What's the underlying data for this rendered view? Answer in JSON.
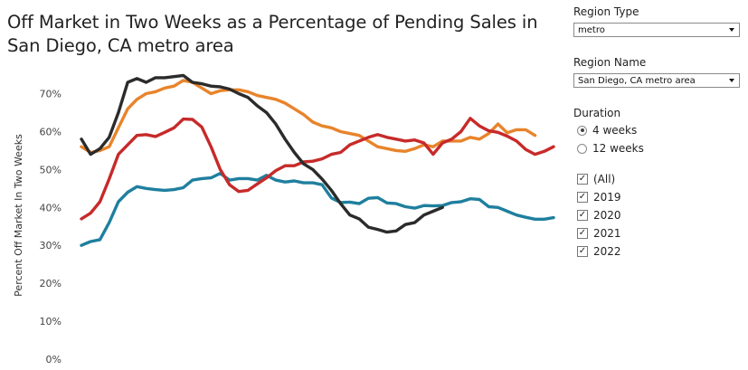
{
  "title": "Off Market in Two Weeks as a Percentage of Pending Sales in San Diego, CA metro area",
  "controls": {
    "region_type_label": "Region Type",
    "region_type_value": "metro",
    "region_name_label": "Region Name",
    "region_name_value": "San Diego, CA metro area",
    "duration_label": "Duration",
    "duration_options": [
      {
        "label": "4 weeks",
        "selected": true
      },
      {
        "label": "12 weeks",
        "selected": false
      }
    ],
    "year_filters": [
      {
        "label": "(All)",
        "checked": true
      },
      {
        "label": "2019",
        "checked": true
      },
      {
        "label": "2020",
        "checked": true
      },
      {
        "label": "2021",
        "checked": true
      },
      {
        "label": "2022",
        "checked": true
      }
    ],
    "check_glyph": "✓"
  },
  "chart_data": {
    "type": "line",
    "ylabel": "Percent Off Market In Two Weeks",
    "xlabel": "",
    "ylim": [
      0,
      0.78
    ],
    "yticks": [
      {
        "value": 0.0,
        "label": "0%"
      },
      {
        "value": 0.1,
        "label": "10%"
      },
      {
        "value": 0.2,
        "label": "20%"
      },
      {
        "value": 0.3,
        "label": "30%"
      },
      {
        "value": 0.4,
        "label": "40%"
      },
      {
        "value": 0.5,
        "label": "50%"
      },
      {
        "value": 0.6,
        "label": "60%"
      },
      {
        "value": 0.7,
        "label": "70%"
      }
    ],
    "x_range": [
      1,
      52
    ],
    "legend": "none",
    "grid": false,
    "series": [
      {
        "color": "#1f7f9e",
        "x": [
          1,
          2,
          3,
          4,
          5,
          6,
          7,
          8,
          9,
          10,
          11,
          12,
          13,
          14,
          15,
          16,
          17,
          18,
          19,
          20,
          21,
          22,
          23,
          24,
          25,
          26,
          27,
          28,
          29,
          30,
          31,
          32,
          33,
          34,
          35,
          36,
          37,
          38,
          39,
          40,
          41,
          42,
          43,
          44,
          45,
          46,
          47,
          48,
          49,
          50,
          51,
          52
        ],
        "y": [
          0.3,
          0.31,
          0.315,
          0.36,
          0.415,
          0.44,
          0.455,
          0.45,
          0.447,
          0.445,
          0.447,
          0.452,
          0.472,
          0.476,
          0.478,
          0.49,
          0.472,
          0.476,
          0.476,
          0.472,
          0.485,
          0.472,
          0.467,
          0.47,
          0.465,
          0.465,
          0.46,
          0.425,
          0.413,
          0.414,
          0.41,
          0.424,
          0.426,
          0.412,
          0.41,
          0.402,
          0.398,
          0.405,
          0.404,
          0.405,
          0.413,
          0.415,
          0.423,
          0.421,
          0.402,
          0.4,
          0.39,
          0.38,
          0.374,
          0.369,
          0.369,
          0.373
        ]
      },
      {
        "color": "#e8842b",
        "x": [
          1,
          2,
          3,
          4,
          5,
          6,
          7,
          8,
          9,
          10,
          11,
          12,
          13,
          14,
          15,
          16,
          17,
          18,
          19,
          20,
          21,
          22,
          23,
          24,
          25,
          26,
          27,
          28,
          29,
          30,
          31,
          32,
          33,
          34,
          35,
          36,
          37,
          38,
          39,
          40,
          41,
          42,
          43,
          44,
          45,
          46,
          47,
          48,
          49,
          50,
          51,
          52
        ],
        "y": [
          0.56,
          0.545,
          0.55,
          0.56,
          0.61,
          0.66,
          0.685,
          0.7,
          0.705,
          0.715,
          0.72,
          0.735,
          0.73,
          0.715,
          0.7,
          0.708,
          0.71,
          0.71,
          0.705,
          0.695,
          0.69,
          0.685,
          0.675,
          0.66,
          0.645,
          0.625,
          0.615,
          0.61,
          0.6,
          0.595,
          0.59,
          0.575,
          0.56,
          0.555,
          0.55,
          0.548,
          0.555,
          0.565,
          0.56,
          0.575,
          0.575,
          0.575,
          0.585,
          0.58,
          0.595,
          0.62,
          0.597,
          0.605,
          0.605,
          0.59,
          null,
          null
        ]
      },
      {
        "color": "#c72a2a",
        "x": [
          1,
          2,
          3,
          4,
          5,
          6,
          7,
          8,
          9,
          10,
          11,
          12,
          13,
          14,
          15,
          16,
          17,
          18,
          19,
          20,
          21,
          22,
          23,
          24,
          25,
          26,
          27,
          28,
          29,
          30,
          31,
          32,
          33,
          34,
          35,
          36,
          37,
          38,
          39,
          40,
          41,
          42,
          43,
          44,
          45,
          46,
          47,
          48,
          49,
          50,
          51,
          52
        ],
        "y": [
          0.37,
          0.385,
          0.415,
          0.475,
          0.54,
          0.565,
          0.59,
          0.592,
          0.587,
          0.598,
          0.61,
          0.633,
          0.632,
          0.612,
          0.56,
          0.5,
          0.46,
          0.442,
          0.445,
          0.462,
          0.478,
          0.497,
          0.51,
          0.51,
          0.52,
          0.522,
          0.528,
          0.54,
          0.545,
          0.565,
          0.575,
          0.585,
          0.592,
          0.585,
          0.58,
          0.575,
          0.578,
          0.57,
          0.54,
          0.57,
          0.58,
          0.6,
          0.635,
          0.615,
          0.602,
          0.598,
          0.588,
          0.575,
          0.553,
          0.54,
          0.548,
          0.56
        ]
      },
      {
        "color": "#2b2b2b",
        "x": [
          1,
          2,
          3,
          4,
          5,
          6,
          7,
          8,
          9,
          10,
          11,
          12,
          13,
          14,
          15,
          16,
          17,
          18,
          19,
          20,
          21,
          22,
          23,
          24,
          25,
          26,
          27,
          28,
          29,
          30,
          31,
          32,
          33,
          34,
          35,
          36,
          37,
          38,
          39,
          40,
          41,
          42,
          43,
          44,
          45,
          46,
          47,
          48,
          49,
          50,
          51,
          52
        ],
        "y": [
          0.58,
          0.54,
          0.555,
          0.585,
          0.65,
          0.73,
          0.74,
          0.73,
          0.742,
          0.742,
          0.745,
          0.748,
          0.73,
          0.726,
          0.72,
          0.718,
          0.712,
          0.7,
          0.69,
          0.668,
          0.65,
          0.62,
          0.58,
          0.545,
          0.515,
          0.5,
          0.475,
          0.445,
          0.41,
          0.38,
          0.37,
          0.348,
          0.342,
          0.335,
          0.338,
          0.355,
          0.36,
          0.38,
          0.39,
          0.4,
          null,
          null,
          null,
          null,
          null,
          null,
          null,
          null,
          null,
          null,
          null,
          null
        ]
      }
    ]
  }
}
